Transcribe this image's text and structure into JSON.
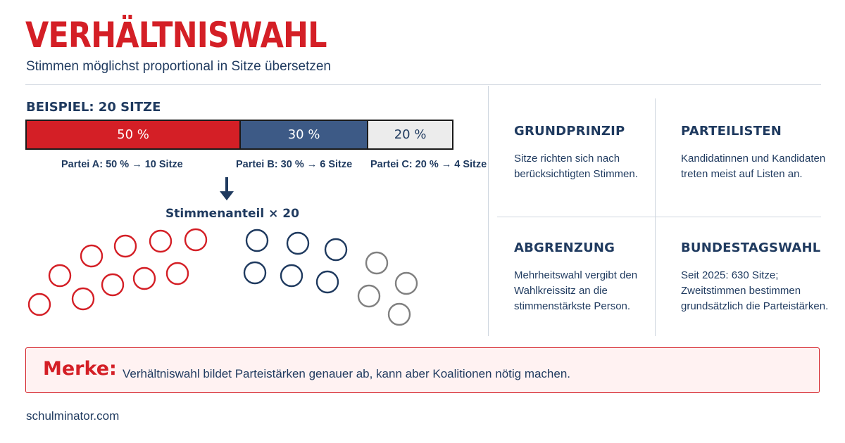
{
  "header": {
    "title": "VERHÄLTNISWAHL",
    "subtitle": "Stimmen möglichst proportional in Sitze übersetzen"
  },
  "example": {
    "title": "BEISPIEL: 20 SITZE",
    "formula": "Stimmenanteil × 20"
  },
  "chart_data": {
    "type": "bar",
    "stacked": true,
    "total_seats": 20,
    "categories": [
      "Partei A",
      "Partei B",
      "Partei C"
    ],
    "values": [
      50,
      30,
      20
    ],
    "seats": [
      10,
      6,
      4
    ],
    "value_labels": [
      "50 %",
      "30 %",
      "20 %"
    ],
    "party_labels": [
      "Partei A: 50 % → 10 Sitze",
      "Partei B: 30 % → 6 Sitze",
      "Partei C: 20 % → 4 Sitze"
    ],
    "colors": [
      "#d41f26",
      "#3d5a86",
      "#ececec"
    ],
    "seat_stroke_colors": [
      "#d41f26",
      "#1f3a5f",
      "#808080"
    ]
  },
  "info": {
    "grundprinzip": {
      "title": "GRUNDPRINZIP",
      "text": "Sitze richten sich nach berücksichtigten Stimmen."
    },
    "parteilisten": {
      "title": "PARTEILISTEN",
      "text": "Kandidatinnen und Kandidaten treten meist auf Listen an."
    },
    "abgrenzung": {
      "title": "ABGRENZUNG",
      "text": "Mehrheitswahl vergibt den Wahlkreissitz an die stimmenstärkste Person."
    },
    "bundestagswahl": {
      "title": "BUNDESTAGSWAHL",
      "text": "Seit 2025: 630 Sitze; Zweitstimmen bestimmen grundsätzlich die Parteistärken."
    }
  },
  "merke": {
    "label": "Merke:",
    "text": "Verhältniswahl bildet Parteistärken genauer ab, kann aber Koalitionen nötig machen."
  },
  "footer": {
    "source": "schulminator.com"
  }
}
